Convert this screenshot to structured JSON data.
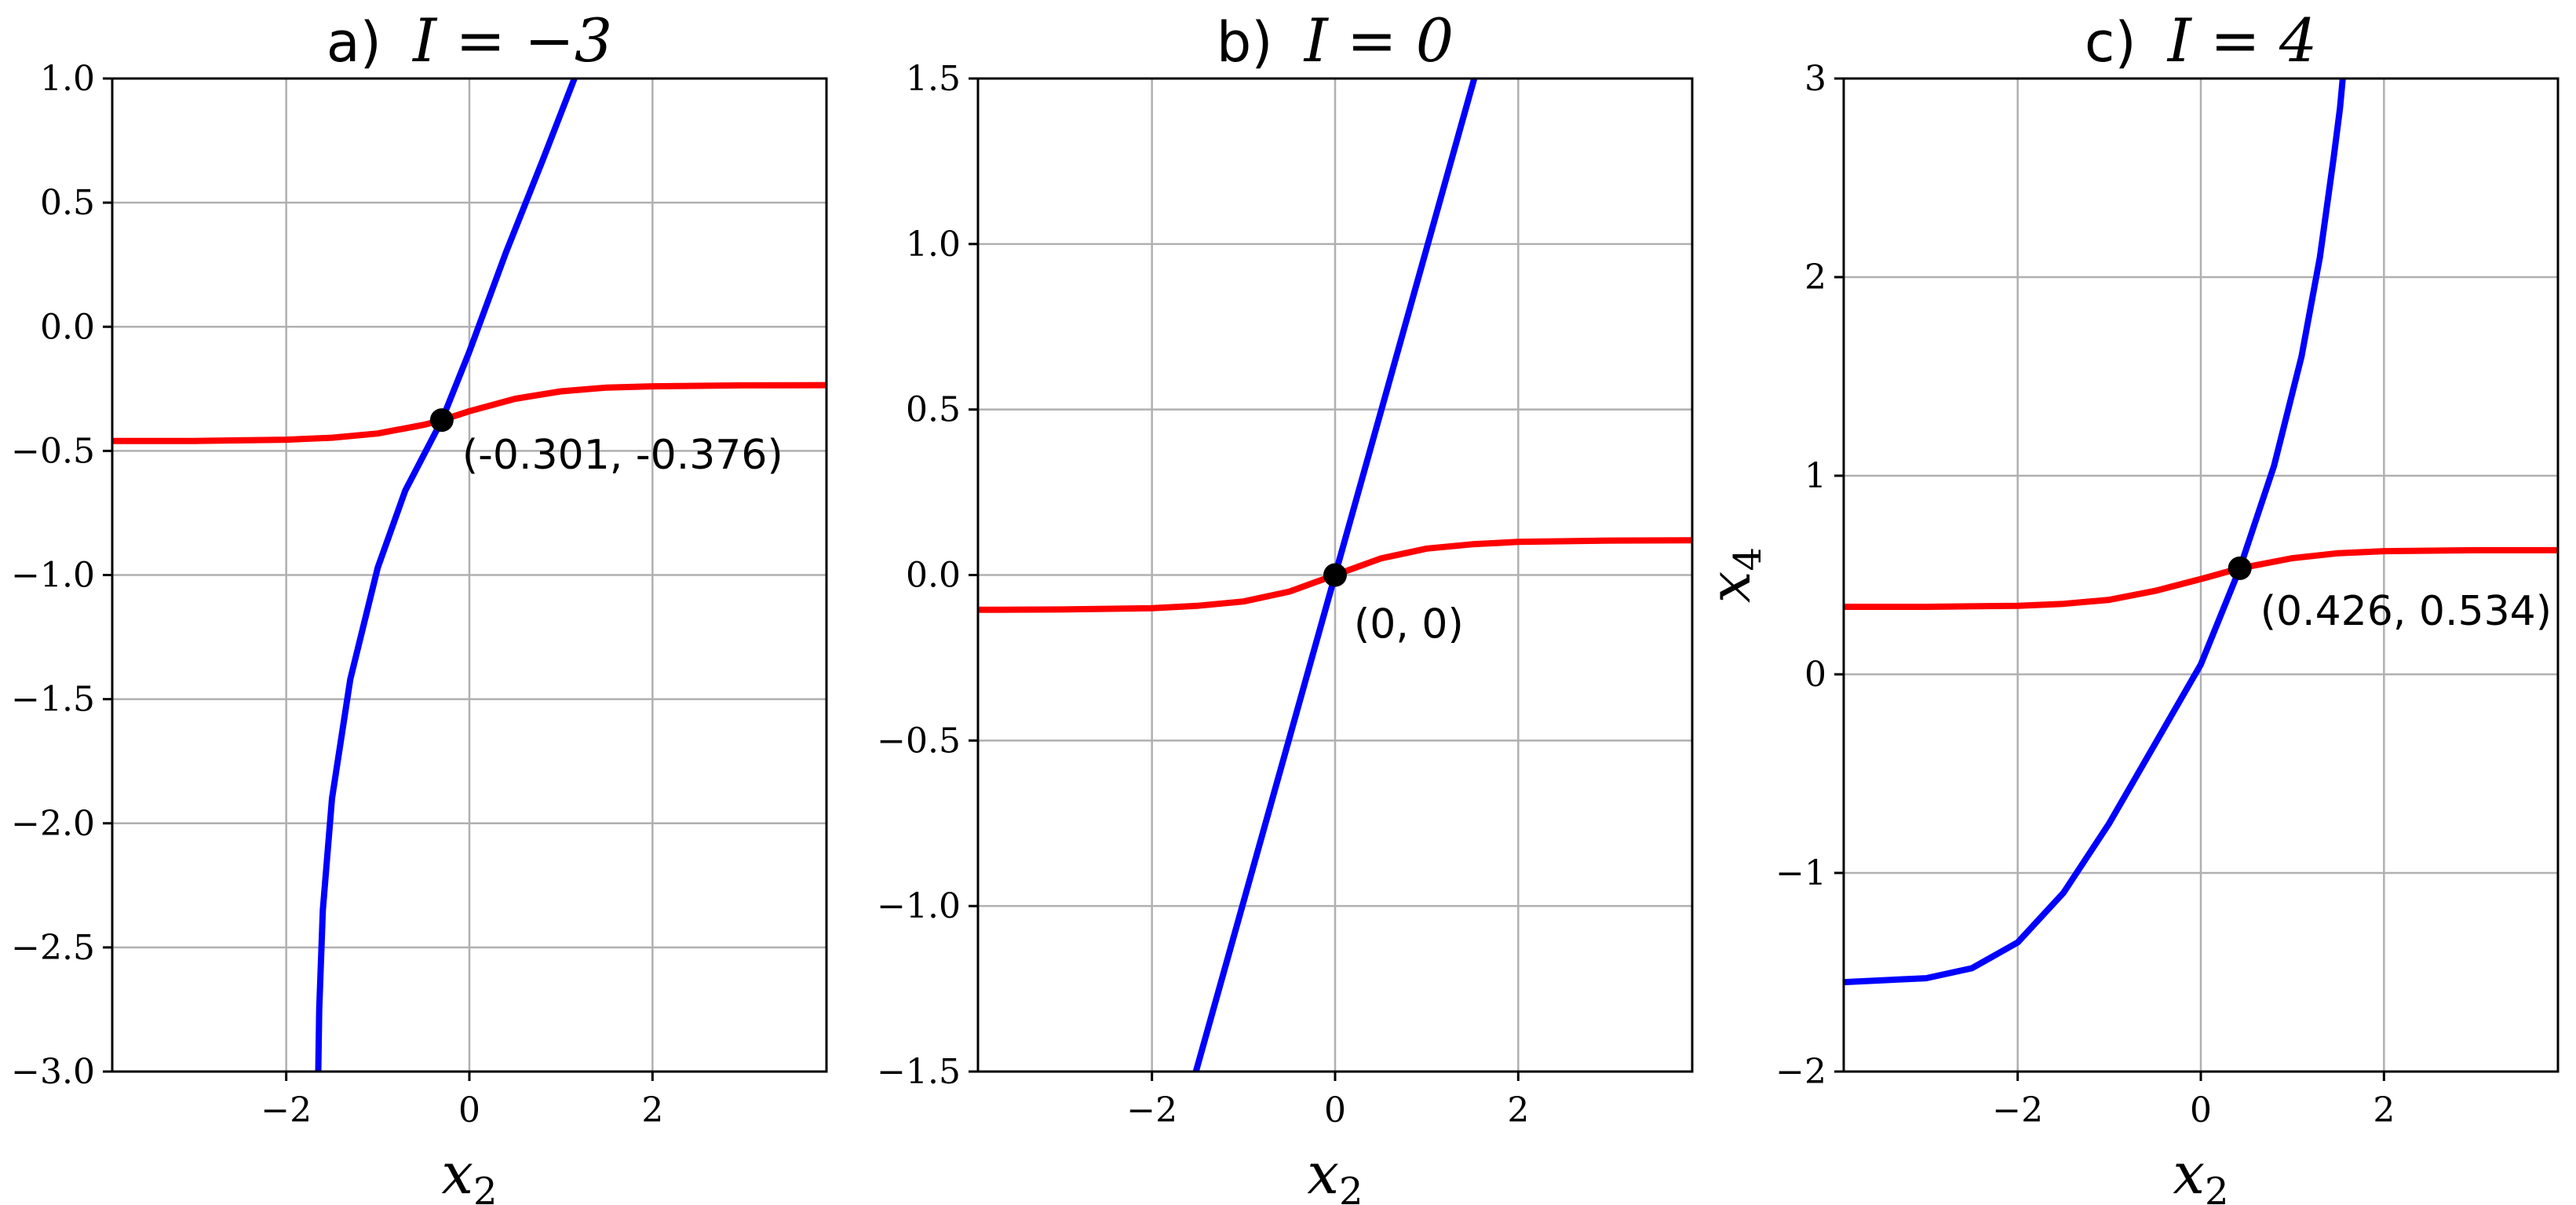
{
  "chart_data": [
    {
      "type": "line",
      "title": "a) I = −3",
      "title_prefix": "a)",
      "title_math": "I = −3",
      "xlabel": "x2",
      "xlabel_main": "x",
      "xlabel_sub": "2",
      "ylabel": "",
      "xlim": [
        -3.9,
        3.9
      ],
      "ylim": [
        -3.0,
        1.0
      ],
      "xticks": [
        -2,
        0,
        2
      ],
      "xtick_labels": [
        "−2",
        "0",
        "2"
      ],
      "yticks": [
        1.0,
        0.5,
        0.0,
        -0.5,
        -1.0,
        -1.5,
        -2.0,
        -2.5,
        -3.0
      ],
      "ytick_labels": [
        "1.0",
        "0.5",
        "0.0",
        "−0.5",
        "−1.0",
        "−1.5",
        "−2.0",
        "−2.5",
        "−3.0"
      ],
      "grid": true,
      "series": [
        {
          "color": "#ff0000",
          "x": [
            -3.9,
            -3.0,
            -2.0,
            -1.5,
            -1.0,
            -0.5,
            -0.3,
            0.0,
            0.5,
            1.0,
            1.5,
            2.0,
            3.0,
            3.9
          ],
          "y": [
            -0.46,
            -0.46,
            -0.455,
            -0.447,
            -0.43,
            -0.395,
            -0.376,
            -0.34,
            -0.29,
            -0.26,
            -0.245,
            -0.24,
            -0.236,
            -0.235
          ]
        },
        {
          "color": "#0000ff",
          "x": [
            -1.65,
            -1.64,
            -1.6,
            -1.5,
            -1.3,
            -1.0,
            -0.7,
            -0.3,
            0.0,
            0.4,
            0.8,
            1.2
          ],
          "y": [
            -3.0,
            -2.75,
            -2.35,
            -1.9,
            -1.42,
            -0.97,
            -0.66,
            -0.376,
            -0.1,
            0.3,
            0.67,
            1.05
          ]
        }
      ],
      "points": [
        {
          "x": -0.301,
          "y": -0.376,
          "label": "(-0.301, -0.376)"
        }
      ]
    },
    {
      "type": "line",
      "title": "b) I = 0",
      "title_prefix": "b)",
      "title_math": "I = 0",
      "xlabel": "x2",
      "xlabel_main": "x",
      "xlabel_sub": "2",
      "ylabel": "",
      "xlim": [
        -3.9,
        3.9
      ],
      "ylim": [
        -1.5,
        1.5
      ],
      "xticks": [
        -2,
        0,
        2
      ],
      "xtick_labels": [
        "−2",
        "0",
        "2"
      ],
      "yticks": [
        1.5,
        1.0,
        0.5,
        0.0,
        -0.5,
        -1.0,
        -1.5
      ],
      "ytick_labels": [
        "1.5",
        "1.0",
        "0.5",
        "0.0",
        "−0.5",
        "−1.0",
        "−1.5"
      ],
      "grid": true,
      "series": [
        {
          "color": "#ff0000",
          "x": [
            -3.9,
            -3.0,
            -2.0,
            -1.5,
            -1.0,
            -0.5,
            0.0,
            0.5,
            1.0,
            1.5,
            2.0,
            3.0,
            3.9
          ],
          "y": [
            -0.105,
            -0.104,
            -0.1,
            -0.093,
            -0.08,
            -0.05,
            0.0,
            0.05,
            0.08,
            0.093,
            0.1,
            0.104,
            0.105
          ]
        },
        {
          "color": "#0000ff",
          "x": [
            -1.52,
            1.52
          ],
          "y": [
            -1.5,
            1.5
          ]
        }
      ],
      "points": [
        {
          "x": 0,
          "y": 0,
          "label": "(0, 0)"
        }
      ]
    },
    {
      "type": "line",
      "title": "c) I = 4",
      "title_prefix": "c)",
      "title_math": "I = 4",
      "xlabel": "x2",
      "xlabel_main": "x",
      "xlabel_sub": "2",
      "ylabel": "x4",
      "ylabel_main": "x",
      "ylabel_sub": "4",
      "xlim": [
        -3.9,
        3.9
      ],
      "ylim": [
        -2.0,
        3.0
      ],
      "xticks": [
        -2,
        0,
        2
      ],
      "xtick_labels": [
        "−2",
        "0",
        "2"
      ],
      "yticks": [
        3,
        2,
        1,
        0,
        -1,
        -2
      ],
      "ytick_labels": [
        "3",
        "2",
        "1",
        "0",
        "−1",
        "−2"
      ],
      "grid": true,
      "series": [
        {
          "color": "#ff0000",
          "x": [
            -3.9,
            -3.0,
            -2.0,
            -1.5,
            -1.0,
            -0.5,
            0.0,
            0.426,
            1.0,
            1.5,
            2.0,
            3.0,
            3.9
          ],
          "y": [
            0.34,
            0.34,
            0.345,
            0.355,
            0.375,
            0.42,
            0.48,
            0.534,
            0.585,
            0.61,
            0.62,
            0.625,
            0.625
          ]
        },
        {
          "color": "#0000ff",
          "x": [
            -3.9,
            -3.0,
            -2.5,
            -2.0,
            -1.5,
            -1.0,
            -0.5,
            0.0,
            0.426,
            0.8,
            1.1,
            1.3,
            1.45,
            1.52,
            1.55
          ],
          "y": [
            -1.55,
            -1.53,
            -1.48,
            -1.35,
            -1.1,
            -0.75,
            -0.35,
            0.05,
            0.534,
            1.05,
            1.6,
            2.1,
            2.6,
            2.85,
            3.0
          ]
        }
      ],
      "points": [
        {
          "x": 0.426,
          "y": 0.534,
          "label": "(0.426, 0.534)"
        }
      ]
    }
  ]
}
